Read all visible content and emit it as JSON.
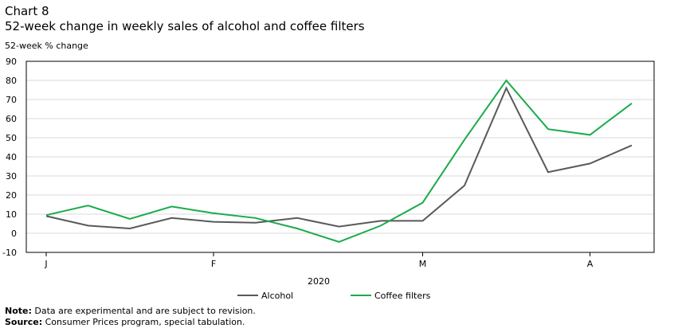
{
  "header": {
    "chart_number": "Chart 8",
    "title": "52-week change in weekly sales of alcohol and coffee filters",
    "ylabel": "52-week % change"
  },
  "footer": {
    "note_label": "Note:",
    "note_text": "Data are experimental and are subject to revision.",
    "source_label": "Source:",
    "source_text": "Consumer Prices program, special tabulation."
  },
  "chart_data": {
    "type": "line",
    "ylabel": "52-week % change",
    "xlabel": "2020",
    "ylim": [
      -10,
      90
    ],
    "yticks": [
      -10,
      0,
      10,
      20,
      30,
      40,
      50,
      60,
      70,
      80,
      90
    ],
    "month_ticks": [
      {
        "label": "J",
        "index": 0
      },
      {
        "label": "F",
        "index": 4
      },
      {
        "label": "M",
        "index": 9
      },
      {
        "label": "A",
        "index": 13
      }
    ],
    "grid": true,
    "legend_position": "bottom",
    "series": [
      {
        "name": "Alcohol",
        "color": "#595959",
        "values": [
          9.0,
          4.0,
          2.5,
          8.0,
          6.0,
          5.5,
          8.0,
          3.5,
          6.5,
          6.5,
          25.0,
          76.0,
          32.0,
          36.5,
          46.0
        ]
      },
      {
        "name": "Coffee filters",
        "color": "#1aab4b",
        "values": [
          9.5,
          14.5,
          7.5,
          14.0,
          10.5,
          8.0,
          2.5,
          -4.5,
          4.0,
          16.0,
          49.0,
          80.0,
          54.5,
          51.5,
          68.0
        ]
      }
    ]
  }
}
